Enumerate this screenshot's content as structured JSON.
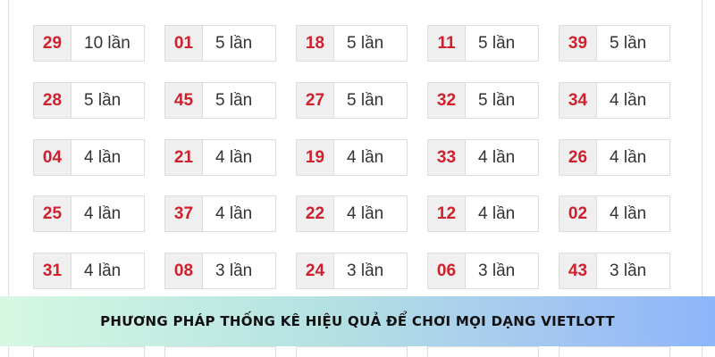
{
  "rows": [
    [
      {
        "n": "29",
        "c": "10 lần"
      },
      {
        "n": "01",
        "c": "5 lần"
      },
      {
        "n": "18",
        "c": "5 lần"
      },
      {
        "n": "11",
        "c": "5 lần"
      },
      {
        "n": "39",
        "c": "5 lần"
      }
    ],
    [
      {
        "n": "28",
        "c": "5 lần"
      },
      {
        "n": "45",
        "c": "5 lần"
      },
      {
        "n": "27",
        "c": "5 lần"
      },
      {
        "n": "32",
        "c": "5 lần"
      },
      {
        "n": "34",
        "c": "4 lần"
      }
    ],
    [
      {
        "n": "04",
        "c": "4 lần"
      },
      {
        "n": "21",
        "c": "4 lần"
      },
      {
        "n": "19",
        "c": "4 lần"
      },
      {
        "n": "33",
        "c": "4 lần"
      },
      {
        "n": "26",
        "c": "4 lần"
      }
    ],
    [
      {
        "n": "25",
        "c": "4 lần"
      },
      {
        "n": "37",
        "c": "4 lần"
      },
      {
        "n": "22",
        "c": "4 lần"
      },
      {
        "n": "12",
        "c": "4 lần"
      },
      {
        "n": "02",
        "c": "4 lần"
      }
    ],
    [
      {
        "n": "31",
        "c": "4 lần"
      },
      {
        "n": "08",
        "c": "3 lần"
      },
      {
        "n": "24",
        "c": "3 lần"
      },
      {
        "n": "06",
        "c": "3 lần"
      },
      {
        "n": "43",
        "c": "3 lần"
      }
    ]
  ],
  "banner": {
    "title": "PHƯƠNG PHÁP THỐNG KÊ HIỆU QUẢ ĐỂ CHƠI MỌI DẠNG VIETLOTT"
  },
  "colors": {
    "number": "#d0202e",
    "gradient_start": "#d6f8e2",
    "gradient_end": "#8db5fa"
  }
}
